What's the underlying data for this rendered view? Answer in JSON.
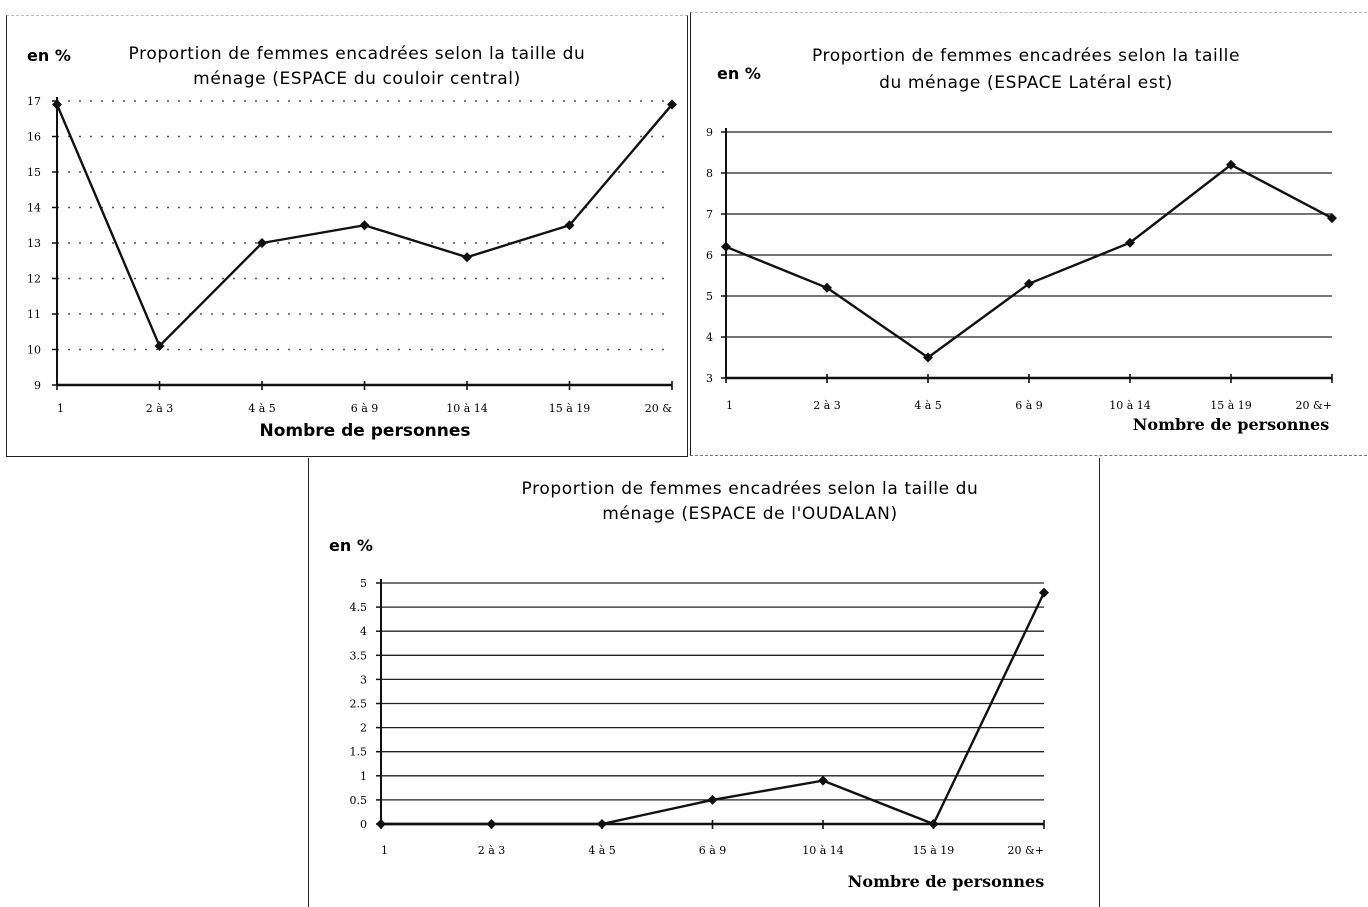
{
  "chart_data": [
    {
      "type": "line",
      "title": "Proportion de femmes encadrées selon la taille du ménage (ESPACE  du couloir central)",
      "title_lines": [
        "Proportion de femmes encadrées selon la taille du",
        "ménage (ESPACE  du couloir central)"
      ],
      "ylabel": "en %",
      "xlabel": "Nombre de personnes",
      "categories": [
        "1",
        "2 à 3",
        "4 à 5",
        "6 à 9",
        "10 à 14",
        "15 à 19",
        "20 &"
      ],
      "values": [
        16.9,
        10.1,
        13.0,
        13.5,
        12.6,
        13.5,
        16.9
      ],
      "ylim": [
        9,
        17
      ],
      "yticks": [
        "9",
        "10",
        "11",
        "12",
        "13",
        "14",
        "15",
        "16",
        "17"
      ],
      "grid": "dotted"
    },
    {
      "type": "line",
      "title": "Proportion de femmes encadrées selon la taille du ménage (ESPACE Latéral est)",
      "title_lines": [
        "Proportion de femmes encadrées selon la taille",
        "du ménage (ESPACE Latéral est)"
      ],
      "ylabel": "en %",
      "xlabel": "Nombre de personnes",
      "categories": [
        "1",
        "2 à 3",
        "4 à 5",
        "6 à 9",
        "10 à 14",
        "15 à 19",
        "20 &+"
      ],
      "values": [
        6.2,
        5.2,
        3.5,
        5.3,
        6.3,
        8.2,
        6.9
      ],
      "ylim": [
        3,
        9
      ],
      "yticks": [
        "3",
        "4",
        "5",
        "6",
        "7",
        "8",
        "9"
      ],
      "grid": "solid"
    },
    {
      "type": "line",
      "title": "Proportion de femmes encadrées selon la taille du ménage (ESPACE de l'OUDALAN)",
      "title_lines": [
        "Proportion de femmes encadrées selon la taille du",
        "ménage (ESPACE de l'OUDALAN)"
      ],
      "ylabel": "en %",
      "xlabel": "Nombre de personnes",
      "categories": [
        "1",
        "2 à 3",
        "4 à 5",
        "6 à 9",
        "10 à 14",
        "15 à 19",
        "20 &+"
      ],
      "values": [
        0,
        0,
        0,
        0.5,
        0.9,
        0,
        4.8
      ],
      "ylim": [
        0,
        5
      ],
      "yticks": [
        "0",
        "0.5",
        "1",
        "1.5",
        "2",
        "2.5",
        "3",
        "3.5",
        "4",
        "4.5",
        "5"
      ],
      "grid": "solid"
    }
  ]
}
